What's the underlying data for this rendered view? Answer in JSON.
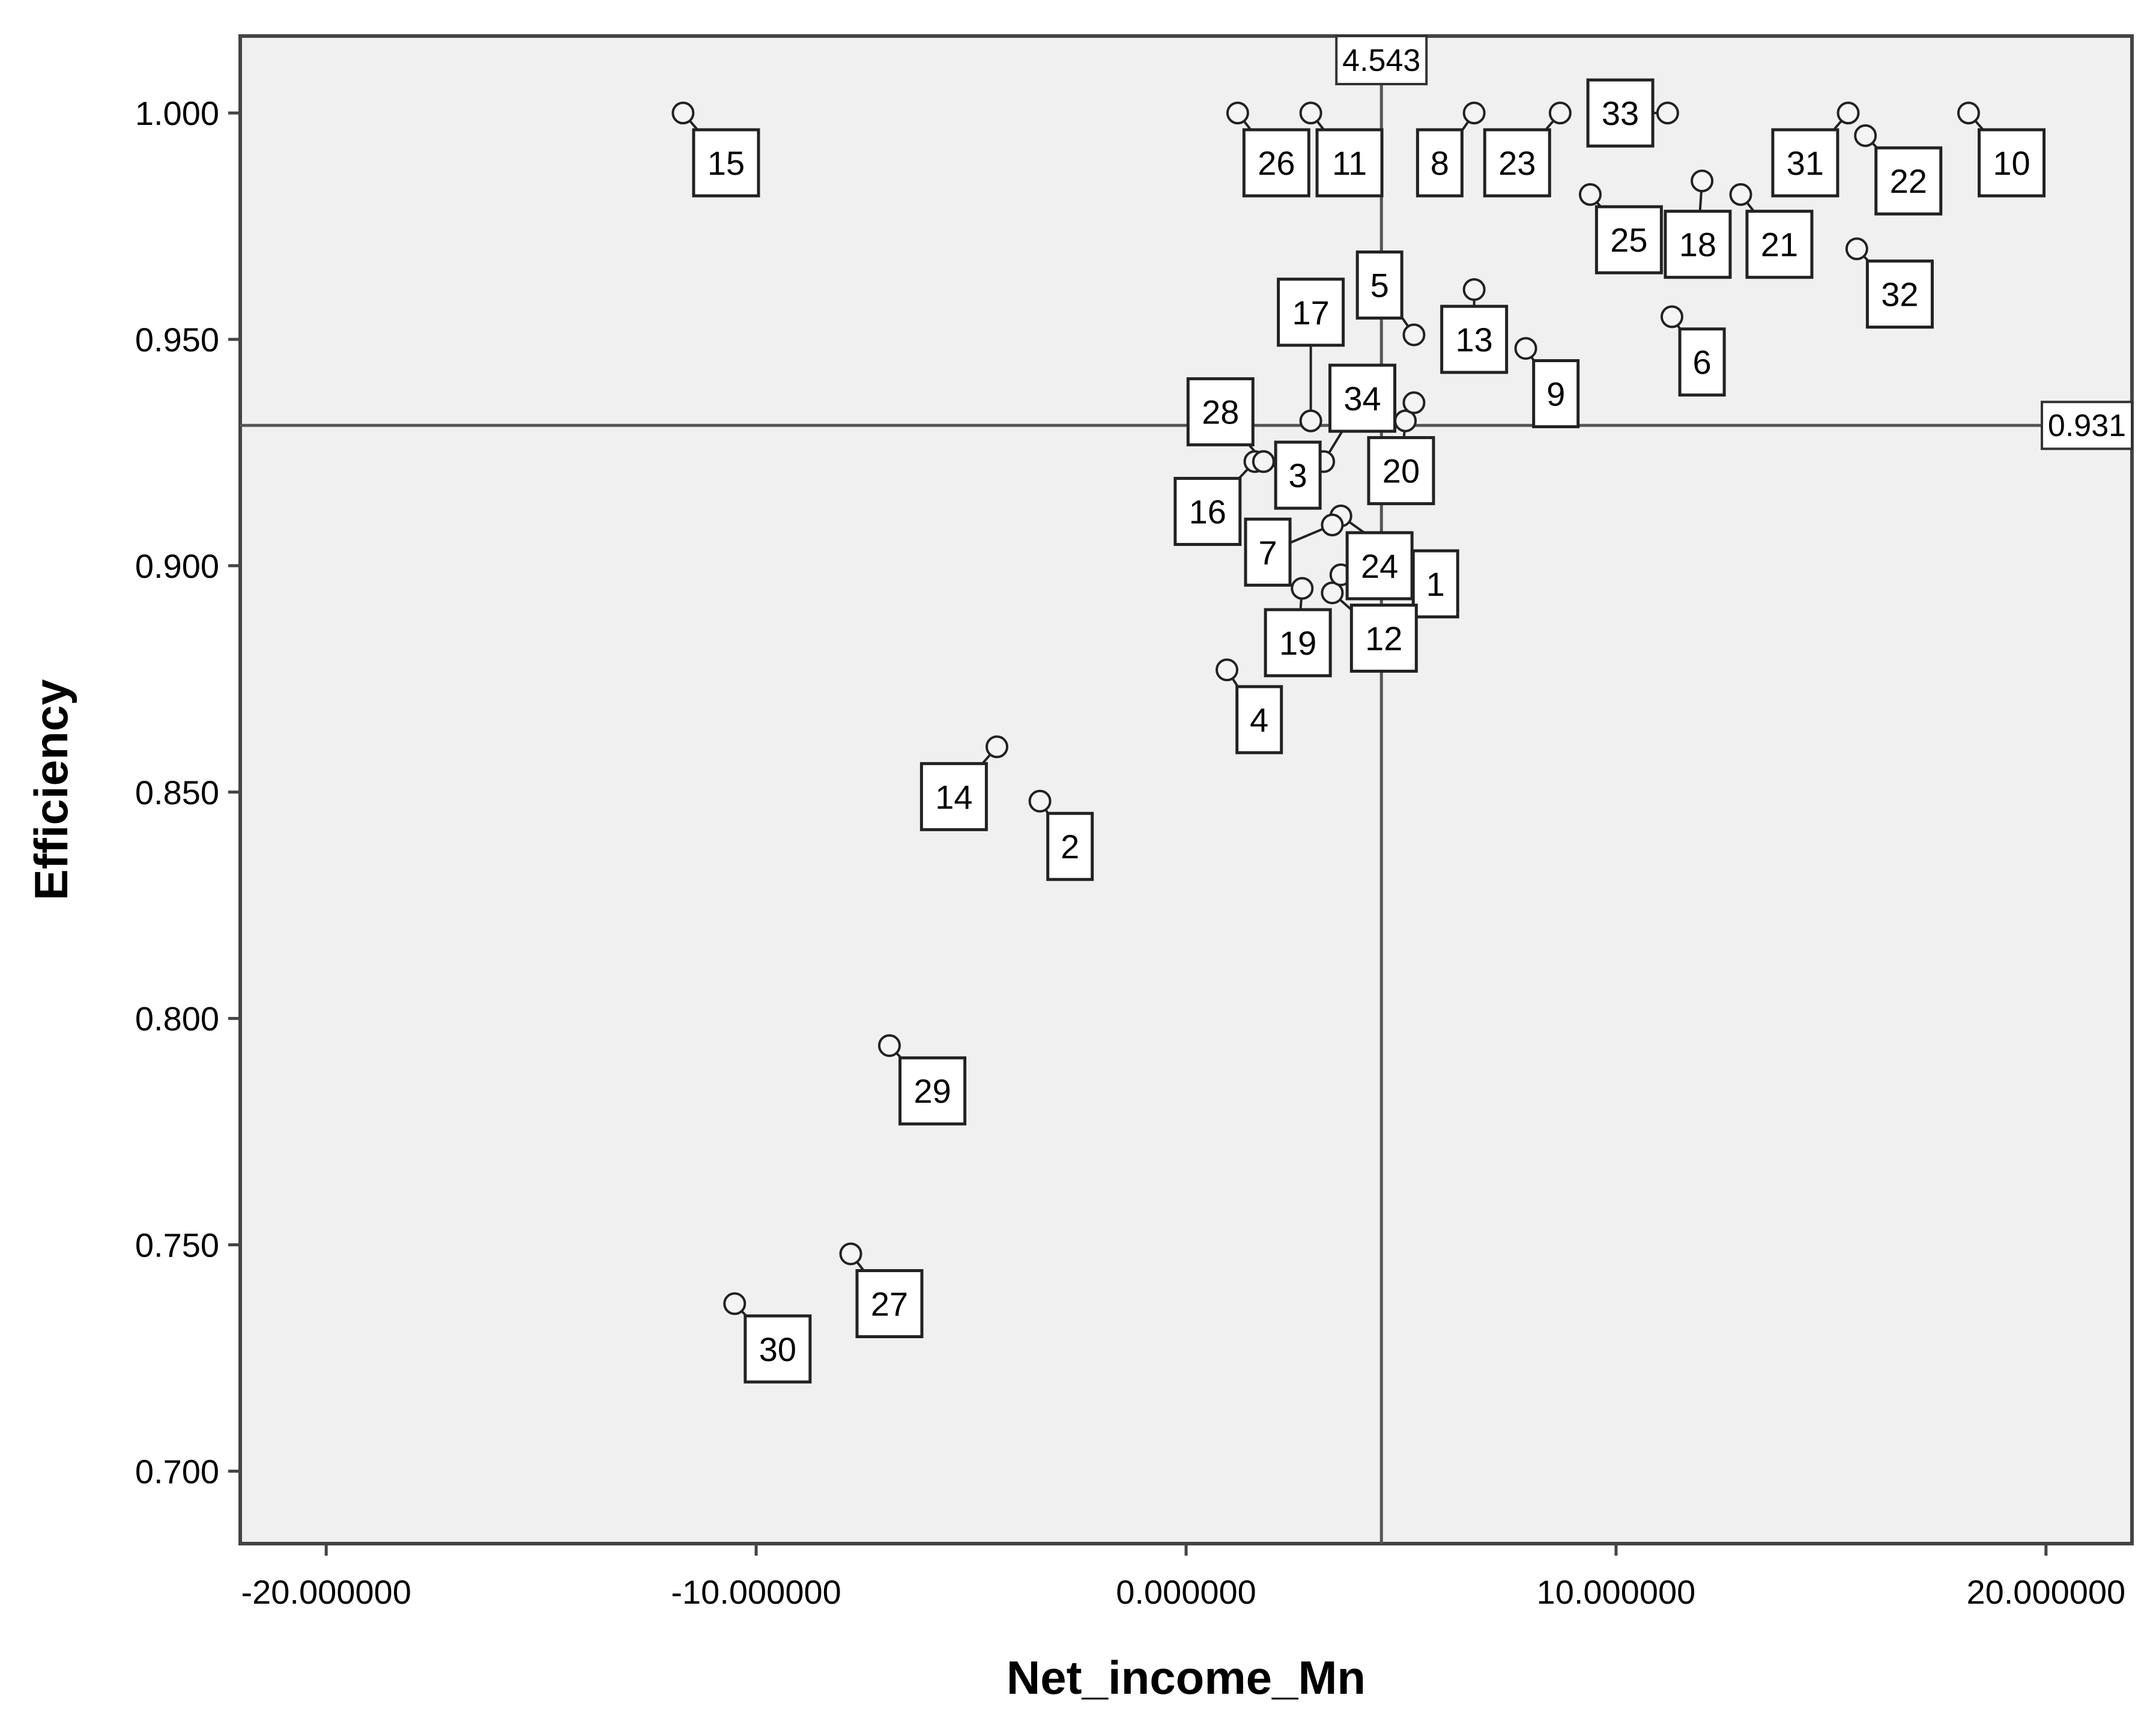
{
  "chart_data": {
    "type": "scatter",
    "title": "",
    "xlabel": "Net_income_Mn",
    "ylabel": "Efficiency",
    "xlim": [
      -22.0,
      22.0
    ],
    "ylim": [
      0.684,
      1.017
    ],
    "xticks": [
      -20,
      -10,
      0,
      10,
      20
    ],
    "xtick_labels": [
      "-20.000000",
      "-10.000000",
      "0.000000",
      "10.000000",
      "20.000000"
    ],
    "yticks": [
      0.7,
      0.75,
      0.8,
      0.85,
      0.9,
      0.95,
      1.0
    ],
    "ytick_labels": [
      "0.700",
      "0.750",
      "0.800",
      "0.850",
      "0.900",
      "0.950",
      "1.000"
    ],
    "grid": false,
    "reference_lines": [
      {
        "axis": "x",
        "value": 4.543,
        "label": "4.543"
      },
      {
        "axis": "y",
        "value": 0.931,
        "label": "0.931"
      }
    ],
    "points": [
      {
        "label": "1",
        "x": 3.6,
        "y": 0.911,
        "ldx": 2.2,
        "ldy": -0.015
      },
      {
        "label": "2",
        "x": -3.4,
        "y": 0.848,
        "ldx": 0.7,
        "ldy": -0.01
      },
      {
        "label": "3",
        "x": 1.8,
        "y": 0.923,
        "ldx": 0.8,
        "ldy": -0.003
      },
      {
        "label": "4",
        "x": 0.95,
        "y": 0.877,
        "ldx": 0.75,
        "ldy": -0.011
      },
      {
        "label": "5",
        "x": 5.3,
        "y": 0.951,
        "ldx": -0.8,
        "ldy": 0.011
      },
      {
        "label": "6",
        "x": 11.3,
        "y": 0.955,
        "ldx": 0.7,
        "ldy": -0.01
      },
      {
        "label": "7",
        "x": 3.4,
        "y": 0.909,
        "ldx": -1.5,
        "ldy": -0.006
      },
      {
        "label": "8",
        "x": 6.7,
        "y": 1.0,
        "ldx": -0.8,
        "ldy": -0.011
      },
      {
        "label": "9",
        "x": 7.9,
        "y": 0.948,
        "ldx": 0.7,
        "ldy": -0.01
      },
      {
        "label": "10",
        "x": 18.2,
        "y": 1.0,
        "ldx": 1.0,
        "ldy": -0.011
      },
      {
        "label": "11",
        "x": 2.9,
        "y": 1.0,
        "ldx": 0.9,
        "ldy": -0.011
      },
      {
        "label": "12",
        "x": 3.4,
        "y": 0.894,
        "ldx": 1.2,
        "ldy": -0.01
      },
      {
        "label": "13",
        "x": 6.7,
        "y": 0.961,
        "ldx": 0.0,
        "ldy": -0.011
      },
      {
        "label": "14",
        "x": -4.4,
        "y": 0.86,
        "ldx": -1.0,
        "ldy": -0.011
      },
      {
        "label": "15",
        "x": -11.7,
        "y": 1.0,
        "ldx": 1.0,
        "ldy": -0.011
      },
      {
        "label": "16",
        "x": 1.6,
        "y": 0.923,
        "ldx": -1.1,
        "ldy": -0.011
      },
      {
        "label": "17",
        "x": 2.9,
        "y": 0.932,
        "ldx": 0.0,
        "ldy": 0.024
      },
      {
        "label": "18",
        "x": 12.0,
        "y": 0.985,
        "ldx": -0.1,
        "ldy": -0.014
      },
      {
        "label": "19",
        "x": 2.7,
        "y": 0.895,
        "ldx": -0.1,
        "ldy": -0.012
      },
      {
        "label": "20",
        "x": 5.1,
        "y": 0.932,
        "ldx": -0.1,
        "ldy": -0.011
      },
      {
        "label": "21",
        "x": 12.9,
        "y": 0.982,
        "ldx": 0.9,
        "ldy": -0.011
      },
      {
        "label": "22",
        "x": 15.8,
        "y": 0.995,
        "ldx": 1.0,
        "ldy": -0.01
      },
      {
        "label": "23",
        "x": 8.7,
        "y": 1.0,
        "ldx": -1.0,
        "ldy": -0.011
      },
      {
        "label": "24",
        "x": 3.6,
        "y": 0.898,
        "ldx": 0.9,
        "ldy": 0.002
      },
      {
        "label": "25",
        "x": 9.4,
        "y": 0.982,
        "ldx": 0.9,
        "ldy": -0.01
      },
      {
        "label": "26",
        "x": 1.2,
        "y": 1.0,
        "ldx": 0.9,
        "ldy": -0.011
      },
      {
        "label": "27",
        "x": -7.8,
        "y": 0.748,
        "ldx": 0.9,
        "ldy": -0.011
      },
      {
        "label": "28",
        "x": 1.8,
        "y": 0.923,
        "ldx": -1.0,
        "ldy": 0.011
      },
      {
        "label": "29",
        "x": -6.9,
        "y": 0.794,
        "ldx": 1.0,
        "ldy": -0.01
      },
      {
        "label": "30",
        "x": -10.5,
        "y": 0.737,
        "ldx": 1.0,
        "ldy": -0.01
      },
      {
        "label": "31",
        "x": 15.4,
        "y": 1.0,
        "ldx": -1.0,
        "ldy": -0.011
      },
      {
        "label": "32",
        "x": 15.6,
        "y": 0.97,
        "ldx": 1.0,
        "ldy": -0.01
      },
      {
        "label": "33",
        "x": 11.2,
        "y": 1.0,
        "ldx": -1.1,
        "ldy": 0.0
      },
      {
        "label": "34",
        "x": 3.2,
        "y": 0.923,
        "ldx": 0.9,
        "ldy": 0.014
      },
      {
        "label": "",
        "x": 5.3,
        "y": 0.936,
        "ldx": 0,
        "ldy": 0
      }
    ]
  }
}
